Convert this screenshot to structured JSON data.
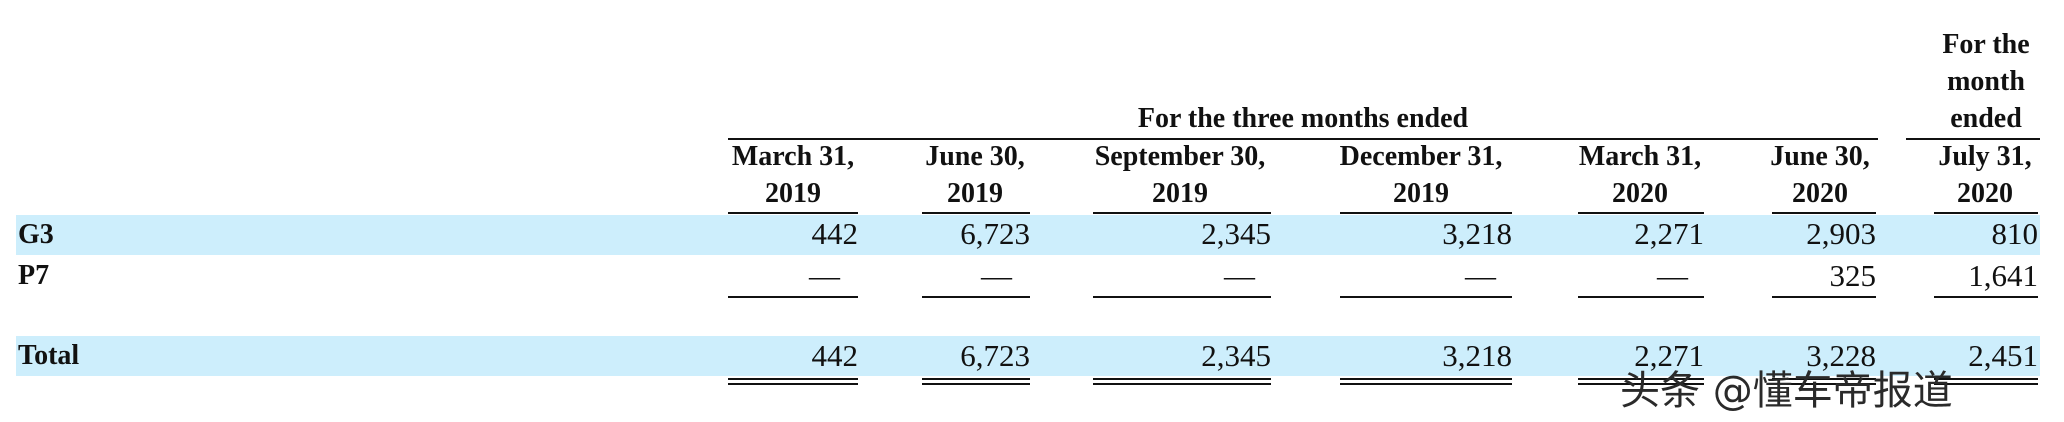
{
  "table": {
    "group_header": "For the three months ended",
    "single_header": "For the month ended",
    "columns": [
      {
        "line1": "March 31,",
        "line2": "2019"
      },
      {
        "line1": "June 30,",
        "line2": "2019"
      },
      {
        "line1": "September 30,",
        "line2": "2019"
      },
      {
        "line1": "December 31,",
        "line2": "2019"
      },
      {
        "line1": "March 31,",
        "line2": "2020"
      },
      {
        "line1": "June 30,",
        "line2": "2020"
      },
      {
        "line1": "July 31,",
        "line2": "2020"
      }
    ],
    "rows": [
      {
        "label": "G3",
        "values": [
          "442",
          "6,723",
          "2,345",
          "3,218",
          "2,271",
          "2,903",
          "810"
        ]
      },
      {
        "label": "P7",
        "values": [
          "—",
          "—",
          "—",
          "—",
          "—",
          "325",
          "1,641"
        ]
      },
      {
        "label": "Total",
        "values": [
          "442",
          "6,723",
          "2,345",
          "3,218",
          "2,271",
          "3,228",
          "2,451"
        ]
      }
    ]
  },
  "watermark": {
    "text": "头条 @懂车帝报道"
  },
  "colors": {
    "highlight": "#cdeefc",
    "text": "#111111"
  }
}
